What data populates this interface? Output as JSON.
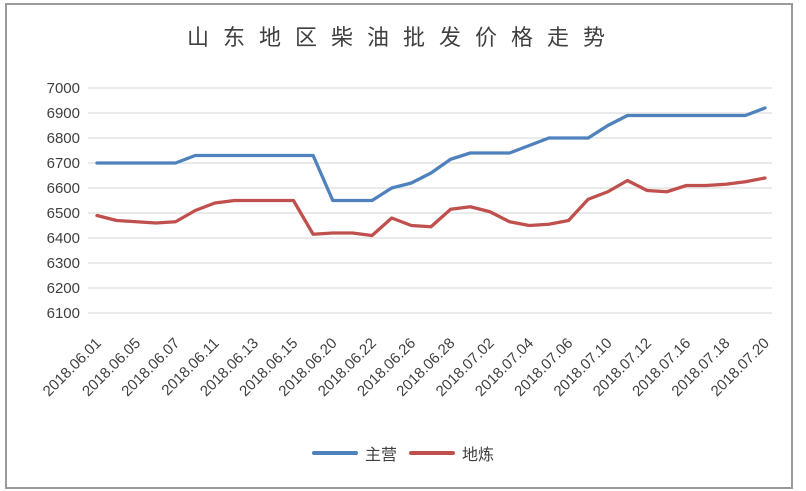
{
  "chart_data": {
    "type": "line",
    "title": "山东地区柴油批发价格走势",
    "xlabel": "",
    "ylabel": "",
    "ylim": [
      6100,
      7000
    ],
    "y_ticks": [
      7000,
      6900,
      6800,
      6700,
      6600,
      6500,
      6400,
      6300,
      6200,
      6100
    ],
    "grid": true,
    "legend_position": "bottom",
    "x_tick_labels": [
      "2018.06.01",
      "2018.06.05",
      "2018.06.07",
      "2018.06.11",
      "2018.06.13",
      "2018.06.15",
      "2018.06.20",
      "2018.06.22",
      "2018.06.26",
      "2018.06.28",
      "2018.07.02",
      "2018.07.04",
      "2018.07.06",
      "2018.07.10",
      "2018.07.12",
      "2018.07.16",
      "2018.07.18",
      "2018.07.20"
    ],
    "tick_label_interval": 2,
    "series": [
      {
        "name": "主营",
        "color": "#4F81BD",
        "values": [
          6700,
          6700,
          6700,
          6700,
          6700,
          6730,
          6730,
          6730,
          6730,
          6730,
          6730,
          6730,
          6550,
          6550,
          6550,
          6600,
          6620,
          6660,
          6715,
          6740,
          6740,
          6740,
          6770,
          6800,
          6800,
          6800,
          6850,
          6890,
          6890,
          6890,
          6890,
          6890,
          6890,
          6890,
          6920
        ]
      },
      {
        "name": "地炼",
        "color": "#C0504D",
        "values": [
          6490,
          6470,
          6465,
          6460,
          6465,
          6510,
          6540,
          6550,
          6550,
          6550,
          6550,
          6415,
          6420,
          6420,
          6410,
          6480,
          6450,
          6445,
          6515,
          6525,
          6505,
          6465,
          6450,
          6455,
          6470,
          6555,
          6585,
          6630,
          6590,
          6585,
          6610,
          6610,
          6615,
          6625,
          6640
        ]
      }
    ],
    "colors": {
      "gridline": "#D6D6D6",
      "axis_text": "#404040",
      "title_text": "#404040",
      "frame_border": "#9A9A9A",
      "background": "#FFFFFF"
    }
  }
}
